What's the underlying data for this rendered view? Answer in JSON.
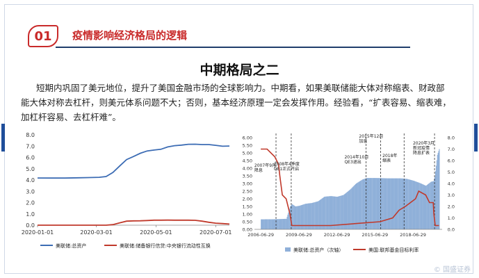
{
  "header": {
    "number": "01",
    "title": "疫情影响经济格局的逻辑"
  },
  "page_title": "中期格局之二",
  "paragraph": "短期内巩固了美元地位，提升了美国金融市场的全球影响力。中期看，如果美联储能大体对称缩表、财政部能大体对称去杠杆，则美元体系问题不大；否则，基本经济原理一定会发挥作用。经验看，“扩表容易、缩表难，加杠杆容易、去杠杆难”。",
  "colors": {
    "accent": "#c92a2a",
    "blue": "#3c6cb4",
    "red": "#c0392b",
    "bars": "#8fb0d9"
  },
  "chart_data": [
    {
      "type": "line",
      "x": [
        "2020-01-01",
        "2020-01-15",
        "2020-01-29",
        "2020-02-12",
        "2020-02-26",
        "2020-03-04",
        "2020-03-11",
        "2020-03-18",
        "2020-03-25",
        "2020-04-01",
        "2020-04-08",
        "2020-04-15",
        "2020-04-22",
        "2020-04-29",
        "2020-05-06",
        "2020-05-13",
        "2020-05-20",
        "2020-05-27",
        "2020-06-03",
        "2020-06-10",
        "2020-06-17",
        "2020-06-24",
        "2020-07-01",
        "2020-07-08",
        "2020-07-15"
      ],
      "x_ticks": [
        "2020-01-01",
        "2020-03-01",
        "2020-05-01",
        "2020-07-01"
      ],
      "ylim": [
        0,
        8
      ],
      "y_ticks": [
        "0.0",
        "1.0",
        "2.0",
        "3.0",
        "4.0",
        "5.0",
        "6.0",
        "7.0",
        "8.0"
      ],
      "series": [
        {
          "name": "美联储:总资产",
          "color": "#3c6cb4",
          "values": [
            4.18,
            4.17,
            4.17,
            4.2,
            4.22,
            4.24,
            4.31,
            4.67,
            5.25,
            5.81,
            6.08,
            6.37,
            6.57,
            6.65,
            6.72,
            6.93,
            7.04,
            7.09,
            7.16,
            7.17,
            7.14,
            7.14,
            7.07,
            6.99,
            7.01
          ]
        },
        {
          "name": "美联储:储备银行信贷:中央银行流动性互换",
          "color": "#c0392b",
          "values": [
            0,
            0,
            0,
            0,
            0,
            0,
            0,
            0.05,
            0.21,
            0.36,
            0.38,
            0.39,
            0.41,
            0.44,
            0.44,
            0.45,
            0.44,
            0.44,
            0.44,
            0.43,
            0.36,
            0.26,
            0.18,
            0.14,
            0.1
          ]
        }
      ],
      "grid": false
    },
    {
      "type": "line",
      "x_ticks": [
        "2006-06-29",
        "2009-06-29",
        "2012-06-29",
        "2015-06-29",
        "2018-06-29"
      ],
      "ylim_left": [
        0,
        6
      ],
      "y_ticks_left": [
        "0.00",
        "0.50",
        "1.00",
        "1.50",
        "2.00",
        "2.50",
        "3.00",
        "3.50",
        "4.00",
        "4.50",
        "5.00",
        "5.50",
        "6.00"
      ],
      "ylim_right": [
        0,
        8
      ],
      "y_ticks_right": [
        "0.0",
        "1.0",
        "2.0",
        "3.0",
        "4.0",
        "5.0",
        "6.0",
        "7.0",
        "8.0"
      ],
      "series": [
        {
          "name": "美联储:总资产（次轴）",
          "axis": "right",
          "style": "bars",
          "color": "#8fb0d9",
          "x": [
            2006.5,
            2007.0,
            2007.5,
            2008.0,
            2008.5,
            2008.8,
            2008.95,
            2009.2,
            2009.5,
            2010.0,
            2010.5,
            2011.0,
            2011.5,
            2012.0,
            2012.5,
            2013.0,
            2013.5,
            2014.0,
            2014.5,
            2014.85,
            2015.5,
            2016.5,
            2017.5,
            2018.0,
            2018.5,
            2019.0,
            2019.5,
            2019.9,
            2020.1,
            2020.2,
            2020.4,
            2020.55
          ],
          "values": [
            0.87,
            0.88,
            0.88,
            0.9,
            0.92,
            2.0,
            2.2,
            2.0,
            2.05,
            2.23,
            2.3,
            2.45,
            2.85,
            2.9,
            2.84,
            3.0,
            3.45,
            4.0,
            4.35,
            4.48,
            4.48,
            4.45,
            4.45,
            4.4,
            4.25,
            4.05,
            3.8,
            4.15,
            4.2,
            4.6,
            6.5,
            7.0
          ]
        },
        {
          "name": "美国:联邦基金目标利率",
          "axis": "left",
          "style": "line",
          "color": "#c0392b",
          "x": [
            2006.5,
            2007.0,
            2007.6,
            2007.9,
            2008.0,
            2008.2,
            2008.5,
            2008.8,
            2008.95,
            2009.5,
            2012.0,
            2015.9,
            2016.9,
            2017.4,
            2017.9,
            2018.3,
            2018.7,
            2018.95,
            2019.5,
            2019.8,
            2020.1,
            2020.15,
            2020.25,
            2020.55
          ],
          "values": [
            5.25,
            5.25,
            4.75,
            4.25,
            3.5,
            2.25,
            2.0,
            1.0,
            0.25,
            0.25,
            0.25,
            0.5,
            0.75,
            1.25,
            1.5,
            1.75,
            2.0,
            2.5,
            2.25,
            1.75,
            1.75,
            1.0,
            0.25,
            0.25
          ]
        }
      ],
      "annotations": [
        "2007年9月降息",
        "2008年4季度QE1正式开启",
        "2014年10月QE3退出",
        "2015年12月加息",
        "2018年缩表",
        "2020年3月新冠疫情降息扩表"
      ],
      "grid": false
    }
  ],
  "watermark": "© 国盛证券"
}
